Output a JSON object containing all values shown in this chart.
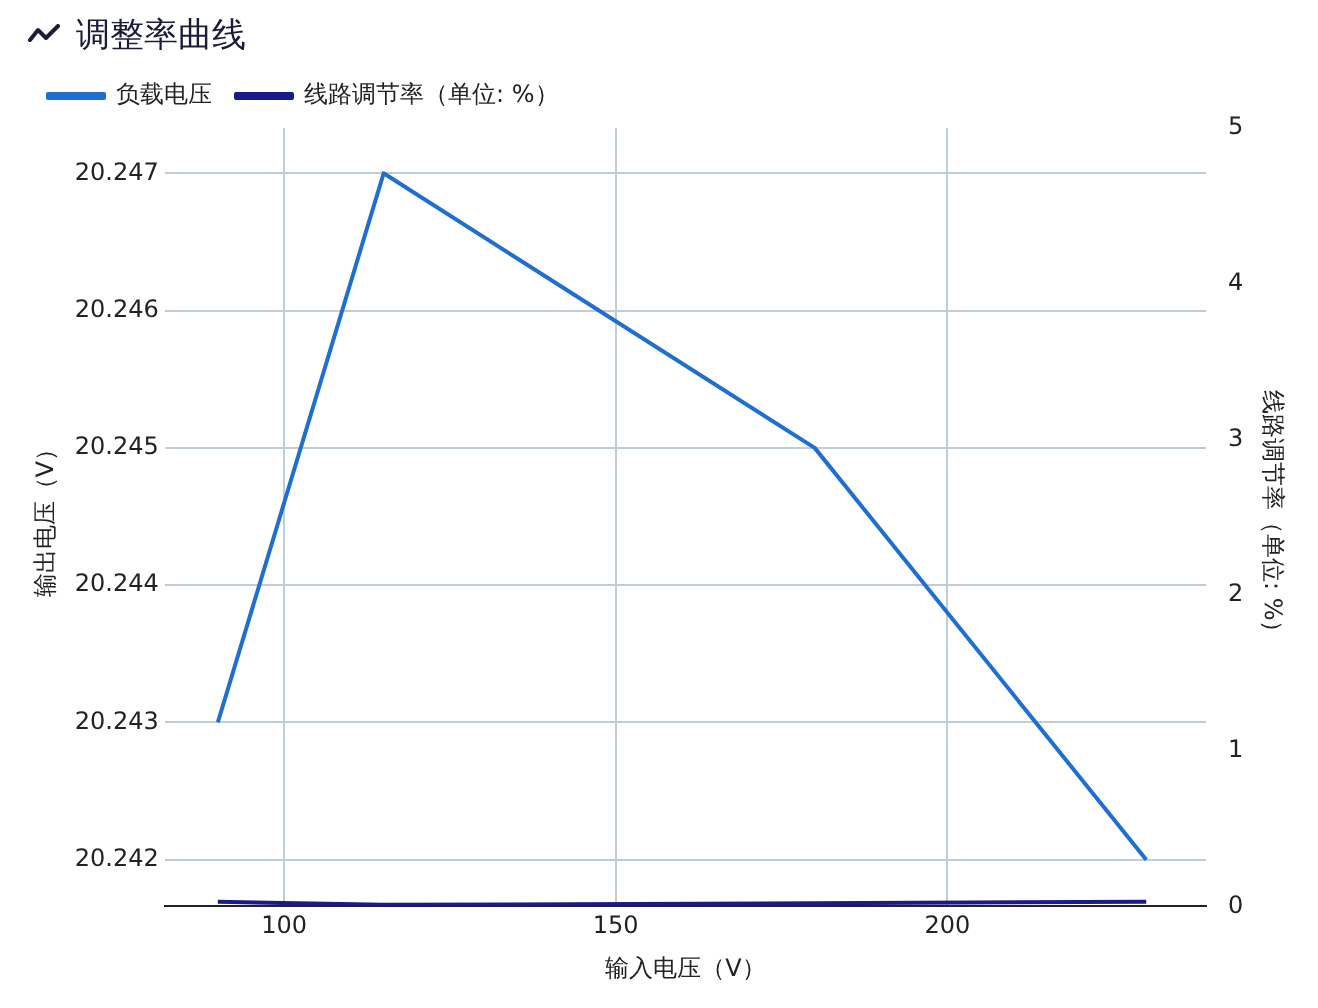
{
  "chart_data": {
    "type": "line",
    "title": "调整率曲线",
    "xlabel": "输入电压（V）",
    "ylabel": "输出电压（V）",
    "y2label": "线路调节率（单位: %）",
    "x": [
      90,
      115,
      180,
      230
    ],
    "series": [
      {
        "name": "负载电压",
        "color": "#1f6fd0",
        "values": [
          20.243,
          20.247,
          20.245,
          20.242
        ]
      },
      {
        "name": "线路调节率（单位: %）",
        "color": "#1a1a8c",
        "axis": "y2",
        "values": [
          0.03,
          0.01,
          0.02,
          0.03
        ]
      }
    ],
    "xlim": [
      82,
      239
    ],
    "xticks": [
      100,
      150,
      200
    ],
    "ylim": [
      20.24166,
      20.24733
    ],
    "yticks": [
      20.242,
      20.243,
      20.244,
      20.245,
      20.246,
      20.247
    ],
    "y2lim": [
      0,
      5
    ],
    "y2ticks": [
      0,
      1,
      2,
      3,
      4,
      5
    ],
    "grid": true,
    "legend": "top left",
    "marker": "none",
    "line_style": "solid"
  }
}
